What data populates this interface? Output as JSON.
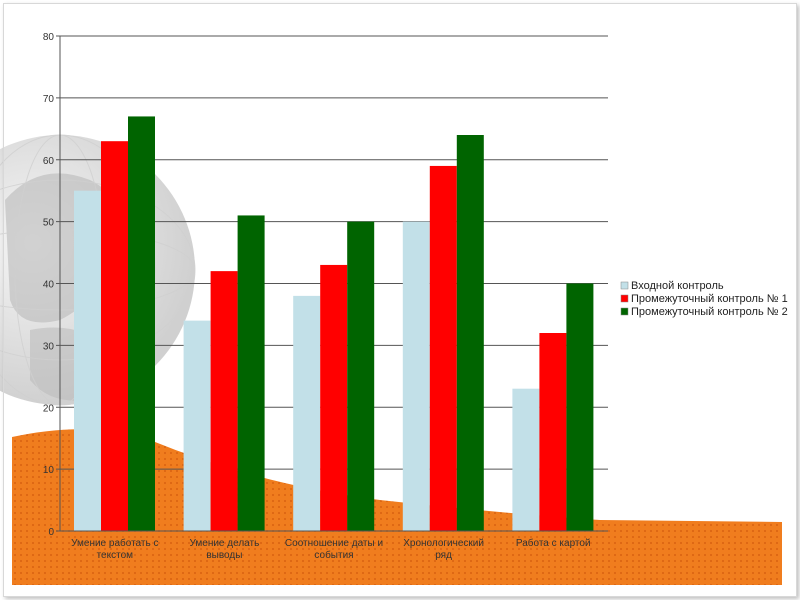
{
  "chart_data": {
    "type": "bar",
    "categories": [
      [
        "Умение работать с",
        "текстом"
      ],
      [
        "Умение делать",
        "выводы"
      ],
      [
        "Соотношение даты и",
        "события"
      ],
      [
        "Хронологический",
        "ряд"
      ],
      [
        "Работа с картой"
      ]
    ],
    "series": [
      {
        "name": "Входной контроль",
        "color": "#c2e0e8",
        "values": [
          55,
          34,
          38,
          50,
          23
        ]
      },
      {
        "name": "Промежуточный контроль № 1",
        "color": "#ff0000",
        "values": [
          63,
          42,
          43,
          59,
          32
        ]
      },
      {
        "name": "Промежуточный контроль № 2",
        "color": "#006400",
        "values": [
          67,
          51,
          50,
          64,
          40
        ]
      }
    ],
    "ylim": [
      0,
      80
    ],
    "yticks": [
      0,
      10,
      20,
      30,
      40,
      50,
      60,
      70,
      80
    ],
    "grid": true,
    "legend_position": "right",
    "title": "",
    "xlabel": "",
    "ylabel": ""
  }
}
